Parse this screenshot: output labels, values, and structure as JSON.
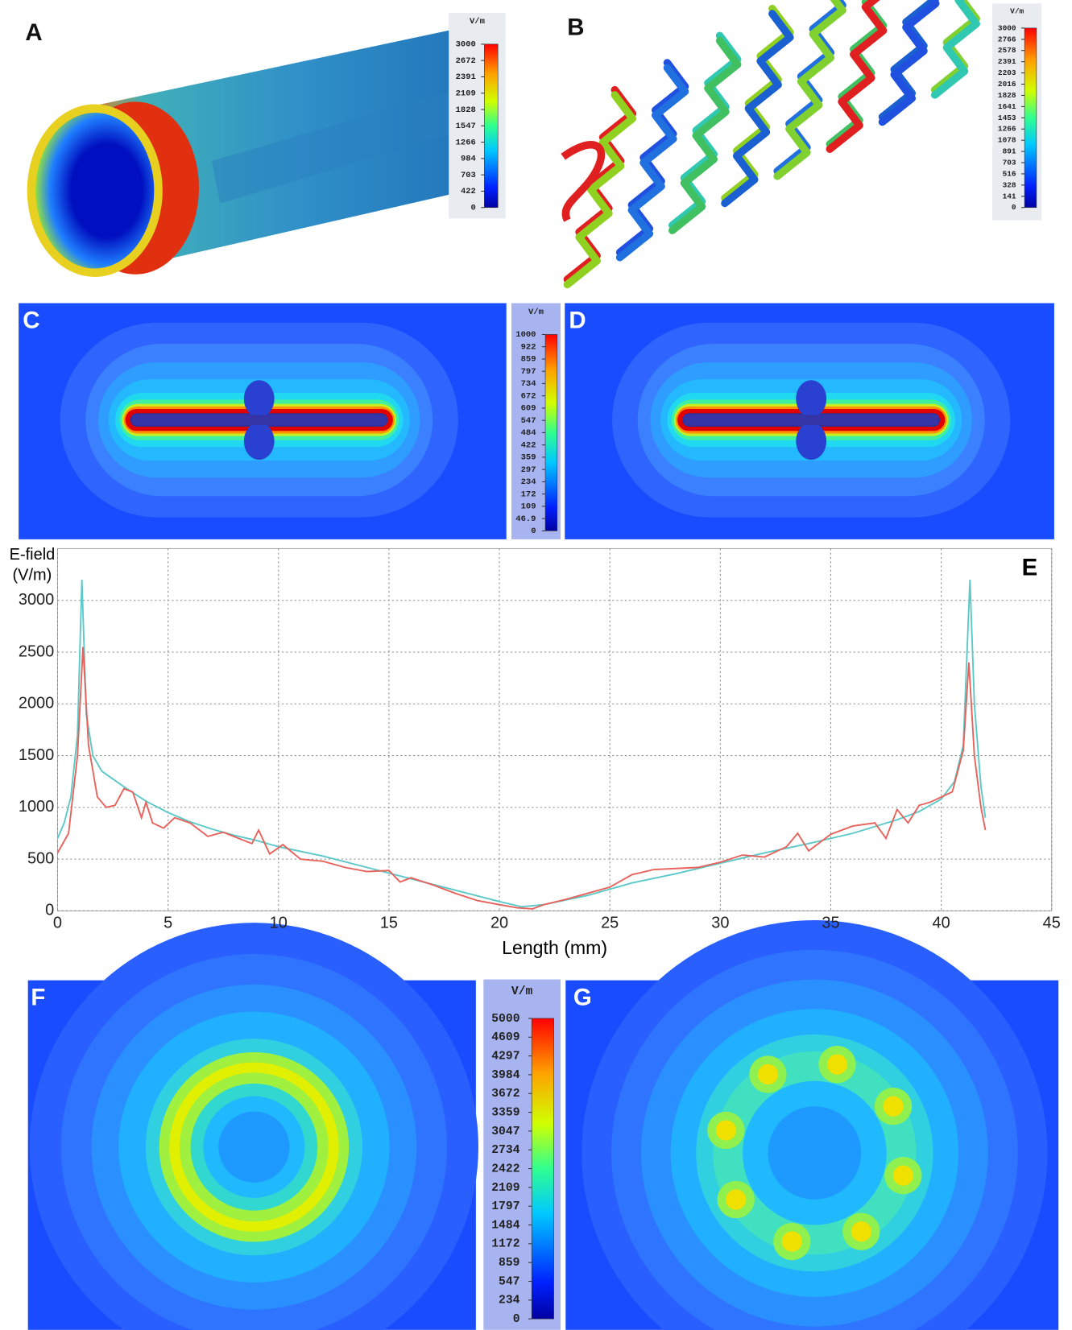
{
  "figure": {
    "panel_labels": [
      "A",
      "B",
      "C",
      "D",
      "F",
      "G"
    ],
    "colorbars": [
      {
        "unit": "V/m",
        "ticks": [
          3000,
          2672,
          2391,
          2109,
          1828,
          1547,
          1266,
          984,
          703,
          422,
          0
        ]
      },
      {
        "unit": "V/m",
        "ticks": [
          3000,
          2766,
          2578,
          2391,
          2203,
          2016,
          1828,
          1641,
          1453,
          1266,
          1078,
          891,
          703,
          516,
          328,
          141,
          0
        ]
      },
      {
        "unit": "V/m",
        "ticks": [
          1000,
          922,
          859,
          797,
          734,
          672,
          609,
          547,
          484,
          422,
          359,
          297,
          234,
          172,
          109,
          46.9,
          0
        ]
      },
      {
        "unit": "V/m",
        "ticks": [
          5000,
          4609,
          4297,
          3984,
          3672,
          3359,
          3047,
          2734,
          2422,
          2109,
          1797,
          1484,
          1172,
          859,
          547,
          234,
          0
        ]
      }
    ]
  },
  "chart_data": {
    "type": "line",
    "panel_label": "E",
    "ylabel": [
      "E-field",
      "(V/m)"
    ],
    "xlabel": "Length (mm)",
    "xlim": [
      0,
      45
    ],
    "xticks": [
      0,
      5,
      10,
      15,
      20,
      25,
      30,
      35,
      40,
      45
    ],
    "ylim": [
      0,
      3500
    ],
    "yticks": [
      0,
      500,
      1000,
      1500,
      2000,
      2500,
      3000
    ],
    "grid": true,
    "series": [
      {
        "color": "#5cc8c8",
        "x": [
          0,
          0.3,
          0.6,
          0.9,
          1.1,
          1.3,
          1.6,
          2,
          3,
          4,
          5,
          6,
          7,
          8,
          9,
          10,
          12,
          14,
          16,
          18,
          20,
          21,
          22,
          24,
          26,
          28,
          30,
          32,
          34,
          36,
          38,
          39,
          40,
          40.6,
          41,
          41.3,
          41.5,
          41.8,
          42
        ],
        "values": [
          700,
          850,
          1100,
          1700,
          3200,
          1900,
          1500,
          1350,
          1200,
          1060,
          950,
          860,
          790,
          730,
          680,
          620,
          530,
          420,
          310,
          200,
          90,
          40,
          60,
          150,
          270,
          360,
          460,
          560,
          650,
          750,
          880,
          960,
          1080,
          1250,
          1600,
          3200,
          2000,
          1200,
          900
        ]
      },
      {
        "color": "#e8625c",
        "x": [
          0,
          0.5,
          0.9,
          1.15,
          1.4,
          1.8,
          2.2,
          2.6,
          3,
          3.4,
          3.8,
          4,
          4.3,
          4.8,
          5.3,
          6,
          6.8,
          7.5,
          8.2,
          8.8,
          9.1,
          9.6,
          10.2,
          11,
          12,
          13,
          14,
          15,
          15.5,
          16,
          17,
          18,
          19,
          20,
          20.8,
          21.5,
          22,
          23,
          24,
          25,
          26,
          27,
          28,
          29,
          30,
          31,
          32,
          33,
          33.5,
          34,
          35,
          36,
          37,
          37.5,
          38,
          38.5,
          39,
          39.5,
          40,
          40.5,
          41,
          41.25,
          41.5,
          41.8,
          42
        ],
        "values": [
          560,
          750,
          1500,
          2550,
          1600,
          1100,
          1000,
          1020,
          1180,
          1150,
          900,
          1050,
          850,
          800,
          900,
          850,
          720,
          760,
          700,
          650,
          780,
          550,
          640,
          500,
          480,
          420,
          380,
          390,
          280,
          320,
          250,
          170,
          100,
          60,
          30,
          20,
          60,
          110,
          170,
          230,
          350,
          400,
          410,
          420,
          470,
          540,
          520,
          620,
          750,
          580,
          740,
          820,
          850,
          700,
          980,
          850,
          1020,
          1050,
          1100,
          1150,
          1550,
          2400,
          1500,
          1000,
          780
        ]
      }
    ]
  }
}
